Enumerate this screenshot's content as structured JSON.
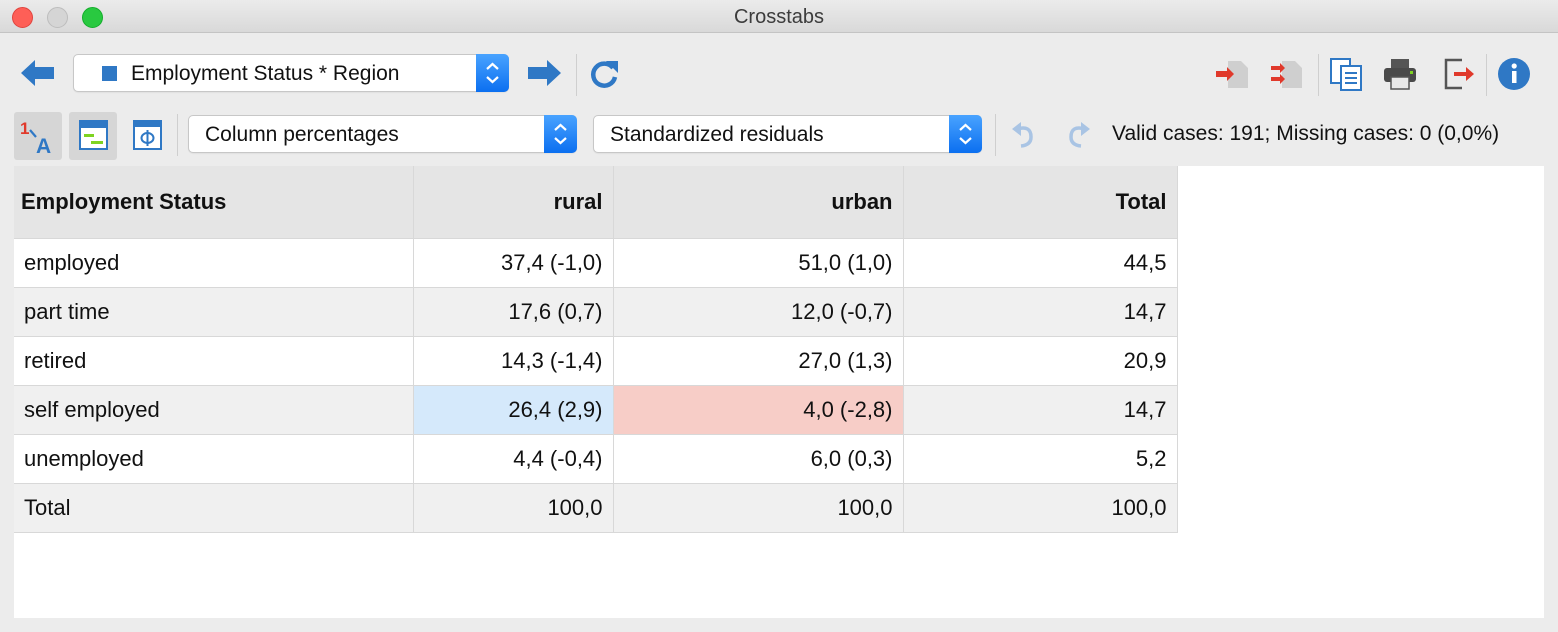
{
  "window": {
    "title": "Crosstabs"
  },
  "toolbar": {
    "table_select": "Employment Status * Region",
    "display_select": "Column percentages",
    "residual_select": "Standardized residuals",
    "status": "Valid cases: 191;  Missing cases: 0 (0,0%)"
  },
  "table": {
    "headers": [
      "Employment Status",
      "rural",
      "urban",
      "Total"
    ],
    "rows": [
      {
        "label": "employed",
        "rural": "37,4 (-1,0)",
        "urban": "51,0 (1,0)",
        "total": "44,5"
      },
      {
        "label": "part time",
        "rural": "17,6 (0,7)",
        "urban": "12,0 (-0,7)",
        "total": "14,7"
      },
      {
        "label": "retired",
        "rural": "14,3 (-1,4)",
        "urban": "27,0 (1,3)",
        "total": "20,9"
      },
      {
        "label": "self employed",
        "rural": "26,4 (2,9)",
        "urban": "4,0 (-2,8)",
        "total": "14,7"
      },
      {
        "label": "unemployed",
        "rural": "4,4 (-0,4)",
        "urban": "6,0 (0,3)",
        "total": "5,2"
      },
      {
        "label": "Total",
        "rural": "100,0",
        "urban": "100,0",
        "total": "100,0"
      }
    ]
  },
  "colors": {
    "positive_residual": "#d5e9fb",
    "negative_residual": "#f7cdc7",
    "accent": "#2f78c5"
  }
}
